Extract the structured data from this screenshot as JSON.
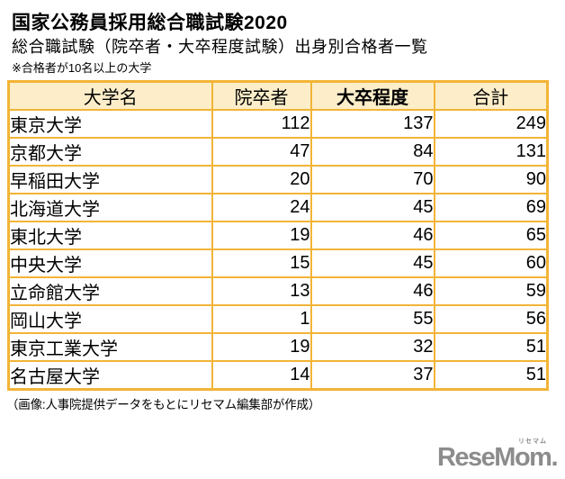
{
  "header": {
    "title": "国家公務員採用総合職試験2020",
    "subtitle": "総合職試験（院卒者・大卒程度試験）出身別合格者一覧",
    "note": "※合格者が10名以上の大学"
  },
  "footer": {
    "credit": "（画像:人事院提供データをもとにリセマム編集部が作成）"
  },
  "logo": {
    "text": "ReseMom.",
    "ruby": "リセマム"
  },
  "colors": {
    "table_border": "#F2B437",
    "header_bg": "#FDEEC9",
    "logo_gray": "#8C8C8C",
    "text": "#000000"
  },
  "chart_data": {
    "type": "table",
    "title": "国家公務員採用総合職試験2020",
    "subtitle": "総合職試験（院卒者・大卒程度試験）出身別合格者一覧",
    "note": "※合格者が10名以上の大学",
    "columns": [
      "大学名",
      "院卒者",
      "大卒程度",
      "合計"
    ],
    "rows": [
      [
        "東京大学",
        112,
        137,
        249
      ],
      [
        "京都大学",
        47,
        84,
        131
      ],
      [
        "早稲田大学",
        20,
        70,
        90
      ],
      [
        "北海道大学",
        24,
        45,
        69
      ],
      [
        "東北大学",
        19,
        46,
        65
      ],
      [
        "中央大学",
        15,
        45,
        60
      ],
      [
        "立命館大学",
        13,
        46,
        59
      ],
      [
        "岡山大学",
        1,
        55,
        56
      ],
      [
        "東京工業大学",
        19,
        32,
        51
      ],
      [
        "名古屋大学",
        14,
        37,
        51
      ]
    ]
  }
}
